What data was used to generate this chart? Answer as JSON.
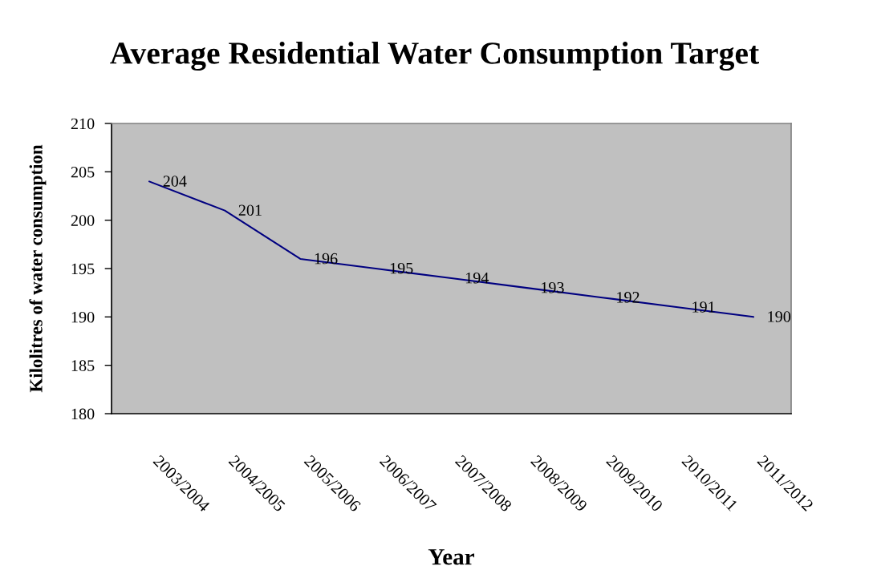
{
  "chart_data": {
    "type": "line",
    "title": "Average Residential Water Consumption Target",
    "xlabel": "Year",
    "ylabel": "Kilolitres of water consumption",
    "categories": [
      "2003/2004",
      "2004/2005",
      "2005/2006",
      "2006/2007",
      "2007/2008",
      "2008/2009",
      "2009/2010",
      "2010/2011",
      "2011/2012"
    ],
    "values": [
      204,
      201,
      196,
      195,
      194,
      193,
      192,
      191,
      190
    ],
    "color": "#000080",
    "ylim": [
      180,
      210
    ],
    "yticks": [
      180,
      185,
      190,
      195,
      200,
      205,
      210
    ],
    "data_labels": true,
    "grid": false
  }
}
